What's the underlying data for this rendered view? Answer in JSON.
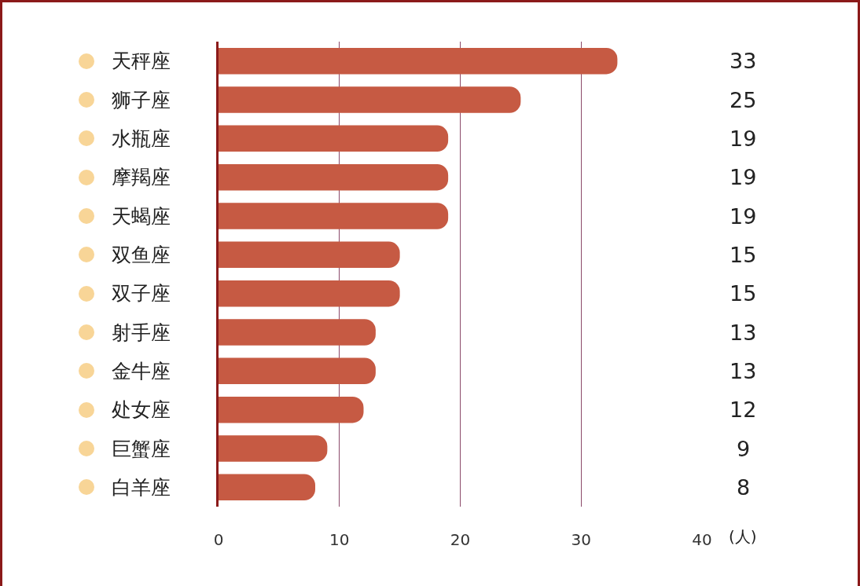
{
  "chart_data": {
    "type": "bar",
    "orientation": "horizontal",
    "categories": [
      "天秤座",
      "狮子座",
      "水瓶座",
      "摩羯座",
      "天蝎座",
      "双鱼座",
      "双子座",
      "射手座",
      "金牛座",
      "处女座",
      "巨蟹座",
      "白羊座"
    ],
    "values": [
      33,
      25,
      19,
      19,
      19,
      15,
      15,
      13,
      13,
      12,
      9,
      8
    ],
    "color": "#c65a43",
    "xlim": [
      0,
      40
    ],
    "xticks": [
      0,
      10,
      20,
      30,
      40
    ],
    "xlabel": "(人)",
    "grid": "x",
    "legend": false,
    "data_labels": true
  }
}
